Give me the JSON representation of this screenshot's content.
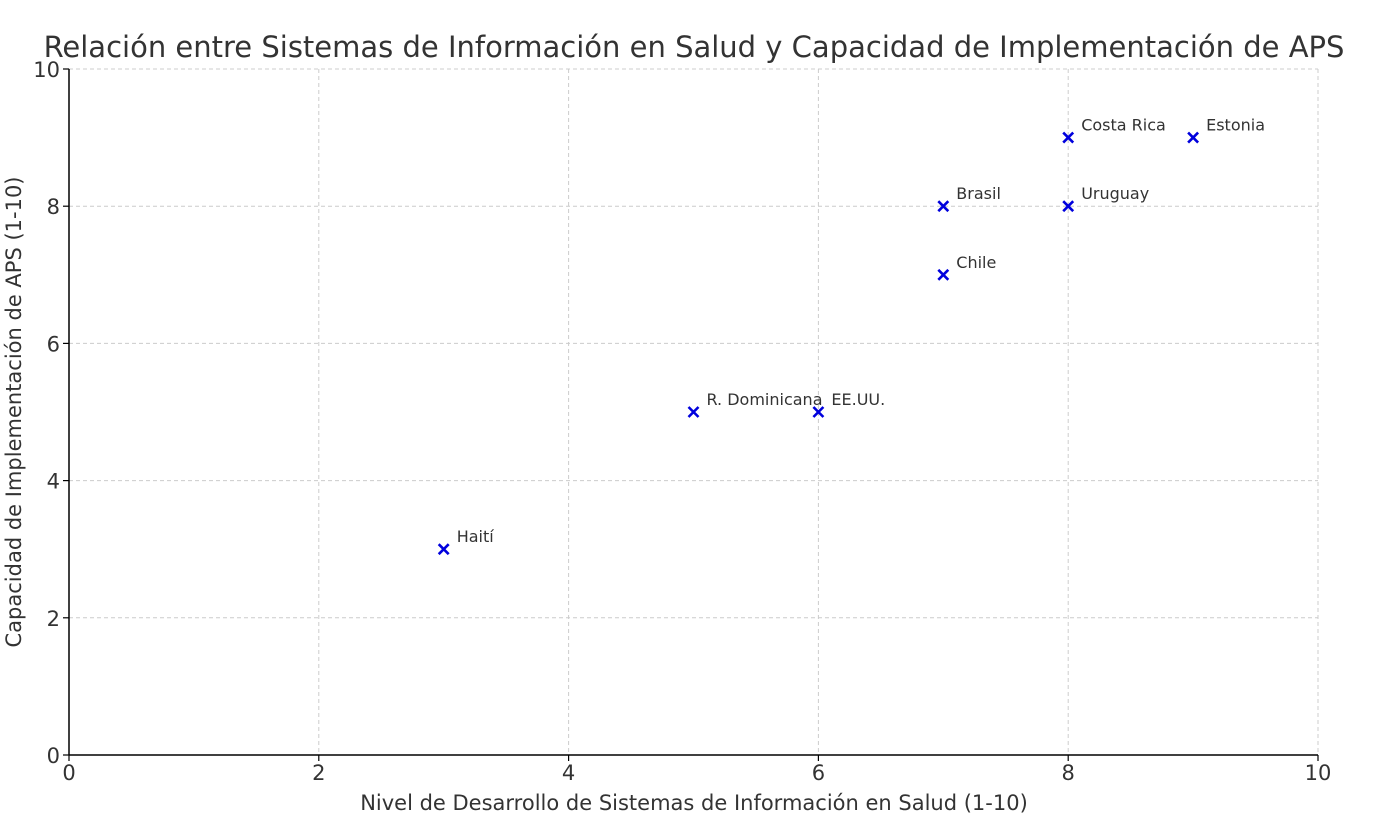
{
  "chart_data": {
    "type": "scatter",
    "title": "Relación entre Sistemas de Información en Salud y Capacidad de Implementación de APS",
    "xlabel": "Nivel de Desarrollo de Sistemas de Información en Salud (1-10)",
    "ylabel": "Capacidad de Implementación de APS (1-10)",
    "xlim": [
      0,
      10
    ],
    "ylim": [
      0,
      10
    ],
    "xticks": [
      0,
      2,
      4,
      6,
      8,
      10
    ],
    "yticks": [
      0,
      2,
      4,
      6,
      8,
      10
    ],
    "grid": true,
    "marker": "x",
    "marker_color": "#0000dd",
    "points": [
      {
        "label": "Estonia",
        "x": 9,
        "y": 9
      },
      {
        "label": "Costa Rica",
        "x": 8,
        "y": 9
      },
      {
        "label": "Brasil",
        "x": 7,
        "y": 8
      },
      {
        "label": "Chile",
        "x": 7,
        "y": 7
      },
      {
        "label": "Uruguay",
        "x": 8,
        "y": 8
      },
      {
        "label": "EE.UU.",
        "x": 6,
        "y": 5
      },
      {
        "label": "R. Dominicana",
        "x": 5,
        "y": 5
      },
      {
        "label": "Haití",
        "x": 3,
        "y": 3
      }
    ]
  }
}
